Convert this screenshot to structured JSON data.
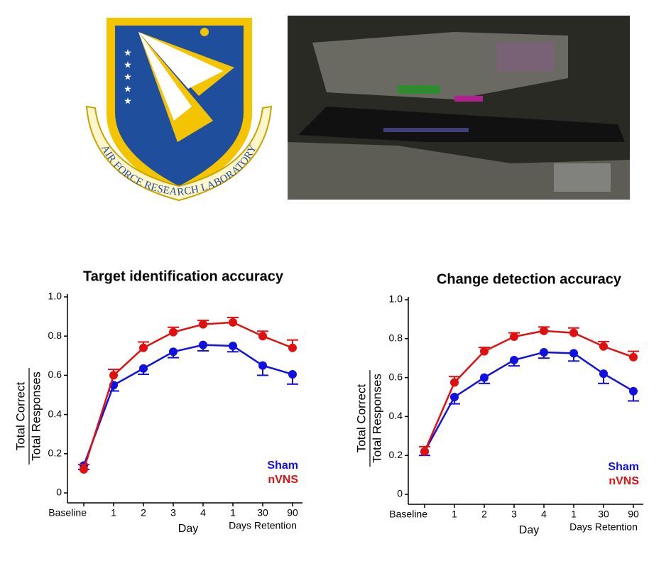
{
  "logo": {
    "text": "AIR FORCE RESEARCH LABORATORY"
  },
  "chart_data": [
    {
      "type": "line",
      "title": "Target identification accuracy",
      "ylabel_top": "Total Correct",
      "ylabel_bottom": "Total Responses",
      "xlabel": "Day",
      "xlabel_retention": "Days Retention",
      "categories": [
        "Baseline",
        "1",
        "2",
        "3",
        "4",
        "1",
        "30",
        "90"
      ],
      "ylim": [
        0,
        1
      ],
      "yticks": [
        0,
        0.2,
        0.4,
        0.6,
        0.8,
        {
          "value": 1,
          "label": "1.0"
        }
      ],
      "series": [
        {
          "name": "Sham",
          "color": "#1010e0",
          "error_side": "lower",
          "values": [
            0.14,
            0.55,
            0.635,
            0.72,
            0.755,
            0.75,
            0.65,
            0.605
          ],
          "errors": [
            0.02,
            0.03,
            0.03,
            0.03,
            0.03,
            0.03,
            0.05,
            0.05
          ]
        },
        {
          "name": "nVNS",
          "color": "#e01010",
          "error_side": "upper",
          "values": [
            0.12,
            0.6,
            0.74,
            0.82,
            0.86,
            0.87,
            0.8,
            0.74
          ],
          "errors": [
            0.025,
            0.03,
            0.03,
            0.025,
            0.02,
            0.025,
            0.025,
            0.04
          ]
        }
      ]
    },
    {
      "type": "line",
      "title": "Change detection accuracy",
      "ylabel_top": "Total Correct",
      "ylabel_bottom": "Total Responses",
      "xlabel": "Day",
      "xlabel_retention": "Days Retention",
      "categories": [
        "Baseline",
        "1",
        "2",
        "3",
        "4",
        "1",
        "30",
        "90"
      ],
      "ylim": [
        0,
        1
      ],
      "yticks": [
        0,
        0.2,
        0.4,
        0.6,
        0.8,
        {
          "value": 1,
          "label": "1.0"
        }
      ],
      "series": [
        {
          "name": "Sham",
          "color": "#1010e0",
          "error_side": "lower",
          "values": [
            0.22,
            0.5,
            0.6,
            0.69,
            0.73,
            0.725,
            0.62,
            0.53
          ],
          "errors": [
            0.02,
            0.035,
            0.03,
            0.03,
            0.03,
            0.04,
            0.05,
            0.05
          ]
        },
        {
          "name": "nVNS",
          "color": "#e01010",
          "error_side": "upper",
          "values": [
            0.22,
            0.575,
            0.735,
            0.81,
            0.84,
            0.83,
            0.76,
            0.705
          ],
          "errors": [
            0.025,
            0.03,
            0.02,
            0.02,
            0.02,
            0.025,
            0.025,
            0.03
          ]
        }
      ]
    }
  ]
}
